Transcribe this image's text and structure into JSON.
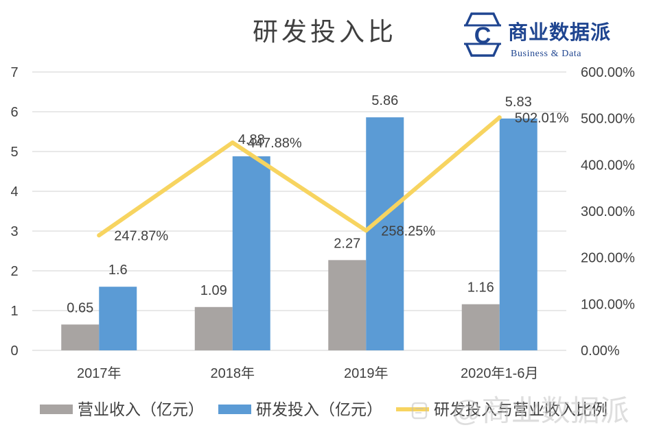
{
  "logo": {
    "icon": "hexagon-c-logo-icon",
    "icon_letter": "C",
    "name": "商业数据派",
    "subtitle": "Business & Data",
    "color": "#1F4590"
  },
  "watermark": {
    "text": "@商业数据派",
    "icon": "watermark-icon"
  },
  "chart_data": {
    "type": "bar",
    "title": "研发投入比",
    "categories": [
      "2017年",
      "2018年",
      "2019年",
      "2020年1-6月"
    ],
    "series": [
      {
        "name": "营业收入（亿元）",
        "type": "bar",
        "axis": "left",
        "color": "#A8A4A2",
        "values": [
          0.65,
          1.09,
          2.27,
          1.16
        ]
      },
      {
        "name": "研发投入（亿元）",
        "type": "bar",
        "axis": "left",
        "color": "#5B9BD5",
        "values": [
          1.6,
          4.88,
          5.86,
          5.83
        ]
      },
      {
        "name": "研发投入与营业收入比例",
        "type": "line",
        "axis": "right",
        "unit": "%",
        "color": "#F7D460",
        "values": [
          247.87,
          447.88,
          258.25,
          502.01
        ]
      }
    ],
    "y_left": {
      "range": [
        0,
        7
      ],
      "ticks": [
        "0",
        "1",
        "2",
        "3",
        "4",
        "5",
        "6",
        "7"
      ]
    },
    "y_right": {
      "range": [
        0,
        600
      ],
      "unit": "%",
      "ticks": [
        "0.00%",
        "100.00%",
        "200.00%",
        "300.00%",
        "400.00%",
        "500.00%",
        "600.00%"
      ]
    },
    "data_labels": true,
    "grid": true,
    "grid_color": "#D9D9D9",
    "legend": "bottom"
  }
}
